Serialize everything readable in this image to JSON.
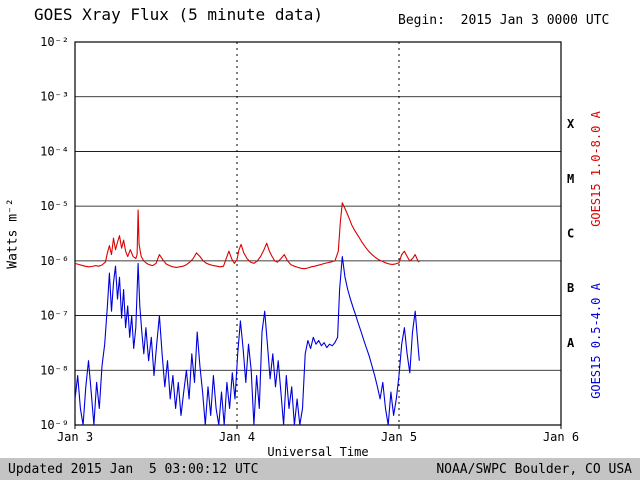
{
  "header": {
    "title": "GOES Xray Flux (5 minute data)",
    "begin": "Begin:  2015 Jan 3 0000 UTC"
  },
  "footer": {
    "updated": "Updated 2015 Jan  5 03:00:12 UTC",
    "credit": "NOAA/SWPC Boulder, CO USA"
  },
  "colors": {
    "long_channel": "#dd0000",
    "short_channel": "#0000dd",
    "grid": "#000000",
    "footer_bg": "#c4c4c4"
  },
  "chart_data": {
    "type": "line",
    "title": "GOES Xray Flux (5 minute data)",
    "xlabel": "Universal Time",
    "ylabel": "Watts m⁻²",
    "x_range_hours": 72,
    "data_end_hour": 51,
    "y_min_exp": -9,
    "y_max_exp": -2,
    "grid": "on",
    "x_ticks": [
      {
        "hour": 0,
        "label": "Jan 3"
      },
      {
        "hour": 24,
        "label": "Jan 4"
      },
      {
        "hour": 48,
        "label": "Jan 5"
      },
      {
        "hour": 72,
        "label": "Jan 6"
      }
    ],
    "day_lines_hours": [
      24,
      48
    ],
    "y_ticks": [
      {
        "exp": -2,
        "label": "10⁻²"
      },
      {
        "exp": -3,
        "label": "10⁻³"
      },
      {
        "exp": -4,
        "label": "10⁻⁴"
      },
      {
        "exp": -5,
        "label": "10⁻⁵"
      },
      {
        "exp": -6,
        "label": "10⁻⁶"
      },
      {
        "exp": -7,
        "label": "10⁻⁷"
      },
      {
        "exp": -8,
        "label": "10⁻⁸"
      },
      {
        "exp": -9,
        "label": "10⁻⁹"
      }
    ],
    "flux_classes": [
      {
        "label": "X",
        "mid_exp": -3.5
      },
      {
        "label": "M",
        "mid_exp": -4.5
      },
      {
        "label": "C",
        "mid_exp": -5.5
      },
      {
        "label": "B",
        "mid_exp": -6.5
      },
      {
        "label": "A",
        "mid_exp": -7.5
      }
    ],
    "series": [
      {
        "name": "GOES15 1.0-8.0 A",
        "color": "#dd0000",
        "points": [
          [
            0,
            9e-07
          ],
          [
            0.5,
            8.6e-07
          ],
          [
            1,
            8.3e-07
          ],
          [
            1.5,
            8e-07
          ],
          [
            2,
            7.8e-07
          ],
          [
            2.5,
            7.9e-07
          ],
          [
            3,
            8.2e-07
          ],
          [
            3.5,
            8e-07
          ],
          [
            4,
            8.4e-07
          ],
          [
            4.5,
            9.5e-07
          ],
          [
            4.8,
            1.4e-06
          ],
          [
            5.1,
            1.9e-06
          ],
          [
            5.4,
            1.3e-06
          ],
          [
            5.7,
            2.6e-06
          ],
          [
            6,
            1.6e-06
          ],
          [
            6.3,
            2.2e-06
          ],
          [
            6.6,
            2.9e-06
          ],
          [
            6.9,
            1.7e-06
          ],
          [
            7.2,
            2.4e-06
          ],
          [
            7.5,
            1.5e-06
          ],
          [
            7.8,
            1.2e-06
          ],
          [
            8.2,
            1.6e-06
          ],
          [
            8.6,
            1.2e-06
          ],
          [
            9,
            1.1e-06
          ],
          [
            9.2,
            1.3e-06
          ],
          [
            9.35,
            8.5e-06
          ],
          [
            9.5,
            2e-06
          ],
          [
            9.8,
            1.2e-06
          ],
          [
            10.2,
            1e-06
          ],
          [
            10.6,
            9e-07
          ],
          [
            11,
            8.5e-07
          ],
          [
            11.5,
            8.2e-07
          ],
          [
            12,
            9e-07
          ],
          [
            12.5,
            1.3e-06
          ],
          [
            13,
            1.05e-06
          ],
          [
            13.5,
            8.8e-07
          ],
          [
            14,
            8.2e-07
          ],
          [
            14.5,
            7.8e-07
          ],
          [
            15,
            7.6e-07
          ],
          [
            15.5,
            7.8e-07
          ],
          [
            16,
            8e-07
          ],
          [
            16.5,
            8.5e-07
          ],
          [
            17,
            9.5e-07
          ],
          [
            17.5,
            1.1e-06
          ],
          [
            18,
            1.4e-06
          ],
          [
            18.5,
            1.2e-06
          ],
          [
            19,
            1e-06
          ],
          [
            19.5,
            9e-07
          ],
          [
            20,
            8.5e-07
          ],
          [
            20.5,
            8.2e-07
          ],
          [
            21,
            8e-07
          ],
          [
            21.5,
            7.8e-07
          ],
          [
            22,
            8e-07
          ],
          [
            22.4,
            1.1e-06
          ],
          [
            22.8,
            1.5e-06
          ],
          [
            23.2,
            1.1e-06
          ],
          [
            23.6,
            9e-07
          ],
          [
            24,
            1.05e-06
          ],
          [
            24.3,
            1.6e-06
          ],
          [
            24.6,
            2e-06
          ],
          [
            25,
            1.4e-06
          ],
          [
            25.5,
            1.1e-06
          ],
          [
            26,
            9.5e-07
          ],
          [
            26.5,
            9e-07
          ],
          [
            27,
            1e-06
          ],
          [
            27.5,
            1.2e-06
          ],
          [
            28,
            1.6e-06
          ],
          [
            28.4,
            2.1e-06
          ],
          [
            28.8,
            1.5e-06
          ],
          [
            29.2,
            1.2e-06
          ],
          [
            29.6,
            1e-06
          ],
          [
            30,
            9.5e-07
          ],
          [
            30.5,
            1.1e-06
          ],
          [
            31,
            1.3e-06
          ],
          [
            31.5,
            1e-06
          ],
          [
            32,
            8.5e-07
          ],
          [
            32.5,
            8e-07
          ],
          [
            33,
            7.6e-07
          ],
          [
            33.5,
            7.3e-07
          ],
          [
            34,
            7.2e-07
          ],
          [
            34.5,
            7.4e-07
          ],
          [
            35,
            7.8e-07
          ],
          [
            35.5,
            8e-07
          ],
          [
            36,
            8.3e-07
          ],
          [
            36.5,
            8.6e-07
          ],
          [
            37,
            9e-07
          ],
          [
            37.5,
            9.3e-07
          ],
          [
            38,
            9.6e-07
          ],
          [
            38.5,
            1e-06
          ],
          [
            39,
            1.5e-06
          ],
          [
            39.3,
            5e-06
          ],
          [
            39.6,
            1.15e-05
          ],
          [
            40,
            9e-06
          ],
          [
            40.5,
            6.5e-06
          ],
          [
            41,
            4.5e-06
          ],
          [
            41.5,
            3.5e-06
          ],
          [
            42,
            2.8e-06
          ],
          [
            42.5,
            2.2e-06
          ],
          [
            43,
            1.8e-06
          ],
          [
            43.5,
            1.5e-06
          ],
          [
            44,
            1.3e-06
          ],
          [
            44.5,
            1.15e-06
          ],
          [
            45,
            1.05e-06
          ],
          [
            45.5,
            9.8e-07
          ],
          [
            46,
            9.2e-07
          ],
          [
            46.5,
            8.8e-07
          ],
          [
            47,
            8.6e-07
          ],
          [
            47.5,
            8.8e-07
          ],
          [
            48,
            9.2e-07
          ],
          [
            48.4,
            1.3e-06
          ],
          [
            48.8,
            1.5e-06
          ],
          [
            49.2,
            1.2e-06
          ],
          [
            49.6,
            1e-06
          ],
          [
            50,
            1.1e-06
          ],
          [
            50.4,
            1.3e-06
          ],
          [
            50.8,
            1e-06
          ],
          [
            51,
            9.5e-07
          ]
        ]
      },
      {
        "name": "GOES15 0.5-4.0 A",
        "color": "#0000dd",
        "points": [
          [
            0,
            3e-09
          ],
          [
            0.4,
            8e-09
          ],
          [
            0.8,
            2e-09
          ],
          [
            1.2,
            1e-09
          ],
          [
            1.6,
            5e-09
          ],
          [
            2,
            1.5e-08
          ],
          [
            2.4,
            4e-09
          ],
          [
            2.8,
            1e-09
          ],
          [
            3.2,
            6e-09
          ],
          [
            3.6,
            2e-09
          ],
          [
            4,
            1.2e-08
          ],
          [
            4.4,
            3e-08
          ],
          [
            4.8,
            1.5e-07
          ],
          [
            5.1,
            6e-07
          ],
          [
            5.4,
            1.2e-07
          ],
          [
            5.7,
            4e-07
          ],
          [
            6,
            8e-07
          ],
          [
            6.3,
            2e-07
          ],
          [
            6.6,
            5e-07
          ],
          [
            6.9,
            9e-08
          ],
          [
            7.2,
            3e-07
          ],
          [
            7.5,
            6e-08
          ],
          [
            7.8,
            1.5e-07
          ],
          [
            8.1,
            4e-08
          ],
          [
            8.4,
            1e-07
          ],
          [
            8.7,
            2.5e-08
          ],
          [
            9,
            6e-08
          ],
          [
            9.35,
            9e-07
          ],
          [
            9.6,
            1.5e-07
          ],
          [
            9.9,
            5e-08
          ],
          [
            10.2,
            2e-08
          ],
          [
            10.5,
            6e-08
          ],
          [
            10.9,
            1.5e-08
          ],
          [
            11.3,
            4e-08
          ],
          [
            11.7,
            8e-09
          ],
          [
            12.1,
            3e-08
          ],
          [
            12.5,
            1e-07
          ],
          [
            12.9,
            2e-08
          ],
          [
            13.3,
            5e-09
          ],
          [
            13.7,
            1.5e-08
          ],
          [
            14.1,
            3e-09
          ],
          [
            14.5,
            8e-09
          ],
          [
            14.9,
            2e-09
          ],
          [
            15.3,
            6e-09
          ],
          [
            15.7,
            1.5e-09
          ],
          [
            16.1,
            4e-09
          ],
          [
            16.5,
            1e-08
          ],
          [
            16.9,
            3e-09
          ],
          [
            17.3,
            2e-08
          ],
          [
            17.7,
            6e-09
          ],
          [
            18.1,
            5e-08
          ],
          [
            18.5,
            1.2e-08
          ],
          [
            18.9,
            4e-09
          ],
          [
            19.3,
            1e-09
          ],
          [
            19.7,
            5e-09
          ],
          [
            20.1,
            1.5e-09
          ],
          [
            20.5,
            8e-09
          ],
          [
            20.9,
            2e-09
          ],
          [
            21.3,
            1e-09
          ],
          [
            21.7,
            4e-09
          ],
          [
            22.1,
            1e-09
          ],
          [
            22.5,
            6e-09
          ],
          [
            22.9,
            2e-09
          ],
          [
            23.3,
            9e-09
          ],
          [
            23.7,
            3e-09
          ],
          [
            24.1,
            2e-08
          ],
          [
            24.5,
            8e-08
          ],
          [
            24.9,
            2.5e-08
          ],
          [
            25.3,
            6e-09
          ],
          [
            25.7,
            3e-08
          ],
          [
            26.1,
            1e-08
          ],
          [
            26.5,
            1e-09
          ],
          [
            26.9,
            8e-09
          ],
          [
            27.3,
            2e-09
          ],
          [
            27.7,
            5e-08
          ],
          [
            28.1,
            1.2e-07
          ],
          [
            28.5,
            3e-08
          ],
          [
            28.9,
            7e-09
          ],
          [
            29.3,
            2e-08
          ],
          [
            29.7,
            5e-09
          ],
          [
            30.1,
            1.5e-08
          ],
          [
            30.5,
            4e-09
          ],
          [
            30.9,
            1e-09
          ],
          [
            31.3,
            8e-09
          ],
          [
            31.7,
            2e-09
          ],
          [
            32.1,
            5e-09
          ],
          [
            32.5,
            1e-09
          ],
          [
            32.9,
            3e-09
          ],
          [
            33.3,
            1e-09
          ],
          [
            33.7,
            2e-09
          ],
          [
            34.1,
            2e-08
          ],
          [
            34.5,
            3.5e-08
          ],
          [
            34.9,
            2.5e-08
          ],
          [
            35.3,
            4e-08
          ],
          [
            35.7,
            3e-08
          ],
          [
            36.1,
            3.5e-08
          ],
          [
            36.5,
            2.8e-08
          ],
          [
            36.9,
            3.2e-08
          ],
          [
            37.3,
            2.6e-08
          ],
          [
            37.7,
            3e-08
          ],
          [
            38.1,
            2.8e-08
          ],
          [
            38.5,
            3.2e-08
          ],
          [
            38.9,
            4e-08
          ],
          [
            39.2,
            3e-07
          ],
          [
            39.6,
            1.2e-06
          ],
          [
            40,
            5e-07
          ],
          [
            40.4,
            3e-07
          ],
          [
            40.8,
            2e-07
          ],
          [
            41.2,
            1.4e-07
          ],
          [
            41.6,
            1e-07
          ],
          [
            42,
            7e-08
          ],
          [
            42.4,
            5e-08
          ],
          [
            42.8,
            3.5e-08
          ],
          [
            43.2,
            2.5e-08
          ],
          [
            43.6,
            1.8e-08
          ],
          [
            44,
            1.2e-08
          ],
          [
            44.4,
            8e-09
          ],
          [
            44.8,
            5e-09
          ],
          [
            45.2,
            3e-09
          ],
          [
            45.6,
            6e-09
          ],
          [
            46,
            2e-09
          ],
          [
            46.4,
            1e-09
          ],
          [
            46.8,
            4e-09
          ],
          [
            47.2,
            1.5e-09
          ],
          [
            47.6,
            3e-09
          ],
          [
            48,
            8e-09
          ],
          [
            48.4,
            3e-08
          ],
          [
            48.8,
            6e-08
          ],
          [
            49.2,
            2e-08
          ],
          [
            49.6,
            9e-09
          ],
          [
            50,
            5e-08
          ],
          [
            50.4,
            1.2e-07
          ],
          [
            50.8,
            3e-08
          ],
          [
            51,
            1.5e-08
          ]
        ]
      }
    ]
  }
}
